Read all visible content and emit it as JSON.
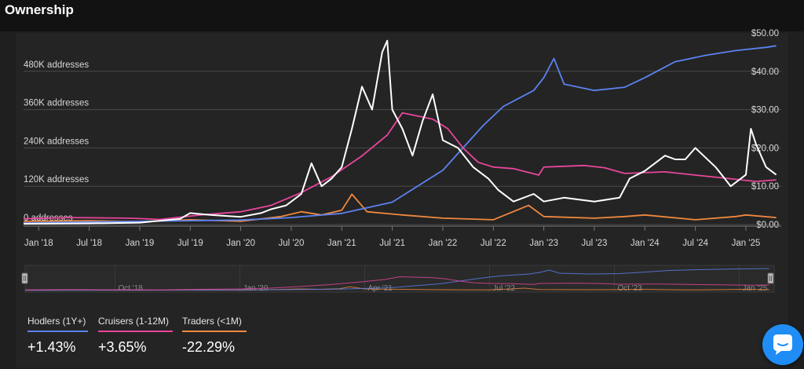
{
  "page": {
    "title": "Ownership"
  },
  "colors": {
    "hodlers": "#5b82f0",
    "cruisers": "#e8469c",
    "traders": "#f0883e",
    "price": "#ffffff"
  },
  "legend": [
    {
      "name": "Hodlers (1Y+)",
      "value": "+1.43%",
      "color": "#5b82f0"
    },
    {
      "name": "Cruisers (1-12M)",
      "value": "+3.65%",
      "color": "#e8469c"
    },
    {
      "name": "Traders (<1M)",
      "value": "-22.29%",
      "color": "#f0883e"
    }
  ],
  "chart_data": {
    "type": "line",
    "x_range": [
      "2017-11",
      "2025-04"
    ],
    "y_left": {
      "ticks": [
        "0 addresses",
        "120K addresses",
        "240K addresses",
        "360K addresses",
        "480K addresses"
      ],
      "range": [
        0,
        600000
      ]
    },
    "y_right": {
      "ticks": [
        "$0.00",
        "$10.00",
        "$20.00",
        "$30.00",
        "$40.00",
        "$50.00"
      ],
      "range": [
        0,
        50
      ]
    },
    "x_ticks": [
      "Jan '18",
      "Jul '18",
      "Jan '19",
      "Jul '19",
      "Jan '20",
      "Jul '20",
      "Jan '21",
      "Jul '21",
      "Jan '22",
      "Jul '22",
      "Jan '23",
      "Jul '23",
      "Jan '24",
      "Jul '24",
      "Jan '25"
    ],
    "navigator_ticks": [
      "Oct '18",
      "Jan '20",
      "Apr '21",
      "Jul '22",
      "Oct '23",
      "Jan '25"
    ],
    "series": [
      {
        "name": "Hodlers (1Y+)",
        "axis": "left",
        "color": "#5b82f0",
        "points": [
          [
            2017.85,
            5000
          ],
          [
            2018.5,
            8000
          ],
          [
            2019.0,
            10000
          ],
          [
            2019.5,
            12000
          ],
          [
            2020.0,
            14000
          ],
          [
            2020.5,
            22000
          ],
          [
            2021.0,
            35000
          ],
          [
            2021.5,
            70000
          ],
          [
            2021.8,
            130000
          ],
          [
            2022.0,
            170000
          ],
          [
            2022.2,
            240000
          ],
          [
            2022.4,
            310000
          ],
          [
            2022.6,
            370000
          ],
          [
            2022.9,
            420000
          ],
          [
            2023.0,
            460000
          ],
          [
            2023.1,
            520000
          ],
          [
            2023.2,
            440000
          ],
          [
            2023.5,
            420000
          ],
          [
            2023.8,
            430000
          ],
          [
            2024.0,
            460000
          ],
          [
            2024.3,
            510000
          ],
          [
            2024.6,
            530000
          ],
          [
            2024.9,
            545000
          ],
          [
            2025.2,
            555000
          ],
          [
            2025.3,
            560000
          ]
        ]
      },
      {
        "name": "Cruisers (1-12M)",
        "axis": "left",
        "color": "#e8469c",
        "points": [
          [
            2017.85,
            18000
          ],
          [
            2018.3,
            22000
          ],
          [
            2018.9,
            20000
          ],
          [
            2019.2,
            16000
          ],
          [
            2019.6,
            30000
          ],
          [
            2020.0,
            40000
          ],
          [
            2020.3,
            60000
          ],
          [
            2020.6,
            100000
          ],
          [
            2020.9,
            150000
          ],
          [
            2021.2,
            215000
          ],
          [
            2021.45,
            280000
          ],
          [
            2021.6,
            350000
          ],
          [
            2021.75,
            340000
          ],
          [
            2021.9,
            330000
          ],
          [
            2022.05,
            300000
          ],
          [
            2022.2,
            240000
          ],
          [
            2022.35,
            195000
          ],
          [
            2022.5,
            180000
          ],
          [
            2022.7,
            175000
          ],
          [
            2022.95,
            155000
          ],
          [
            2023.0,
            180000
          ],
          [
            2023.4,
            185000
          ],
          [
            2023.6,
            178000
          ],
          [
            2023.8,
            160000
          ],
          [
            2024.2,
            165000
          ],
          [
            2024.5,
            155000
          ],
          [
            2024.8,
            145000
          ],
          [
            2025.1,
            135000
          ],
          [
            2025.3,
            140000
          ]
        ]
      },
      {
        "name": "Traders (<1M)",
        "axis": "left",
        "color": "#f0883e",
        "points": [
          [
            2017.85,
            10000
          ],
          [
            2018.5,
            12000
          ],
          [
            2019.0,
            9000
          ],
          [
            2019.5,
            15000
          ],
          [
            2020.0,
            10000
          ],
          [
            2020.4,
            25000
          ],
          [
            2020.6,
            40000
          ],
          [
            2020.8,
            30000
          ],
          [
            2021.0,
            45000
          ],
          [
            2021.1,
            95000
          ],
          [
            2021.25,
            40000
          ],
          [
            2021.6,
            30000
          ],
          [
            2022.0,
            20000
          ],
          [
            2022.5,
            15000
          ],
          [
            2022.85,
            60000
          ],
          [
            2023.0,
            25000
          ],
          [
            2023.5,
            20000
          ],
          [
            2023.8,
            25000
          ],
          [
            2024.0,
            30000
          ],
          [
            2024.5,
            15000
          ],
          [
            2024.9,
            25000
          ],
          [
            2025.0,
            30000
          ],
          [
            2025.3,
            22000
          ]
        ]
      },
      {
        "name": "Price",
        "axis": "right",
        "color": "#ffffff",
        "points": [
          [
            2017.85,
            0.2
          ],
          [
            2018.5,
            0.3
          ],
          [
            2019.0,
            0.5
          ],
          [
            2019.4,
            1.5
          ],
          [
            2019.5,
            3
          ],
          [
            2019.7,
            2.5
          ],
          [
            2020.0,
            2
          ],
          [
            2020.2,
            3
          ],
          [
            2020.3,
            4
          ],
          [
            2020.45,
            5
          ],
          [
            2020.6,
            8
          ],
          [
            2020.7,
            16
          ],
          [
            2020.8,
            10
          ],
          [
            2020.9,
            12
          ],
          [
            2021.0,
            15
          ],
          [
            2021.1,
            25
          ],
          [
            2021.2,
            36
          ],
          [
            2021.3,
            30
          ],
          [
            2021.4,
            45
          ],
          [
            2021.45,
            48
          ],
          [
            2021.5,
            30
          ],
          [
            2021.6,
            25
          ],
          [
            2021.7,
            18
          ],
          [
            2021.8,
            27
          ],
          [
            2021.9,
            34
          ],
          [
            2022.0,
            22
          ],
          [
            2022.15,
            20
          ],
          [
            2022.3,
            15
          ],
          [
            2022.45,
            12
          ],
          [
            2022.55,
            9
          ],
          [
            2022.7,
            6
          ],
          [
            2022.9,
            8
          ],
          [
            2023.0,
            6
          ],
          [
            2023.2,
            7
          ],
          [
            2023.5,
            6
          ],
          [
            2023.75,
            7
          ],
          [
            2023.85,
            12
          ],
          [
            2024.0,
            14
          ],
          [
            2024.2,
            18
          ],
          [
            2024.3,
            17
          ],
          [
            2024.4,
            17
          ],
          [
            2024.5,
            20
          ],
          [
            2024.7,
            15
          ],
          [
            2024.85,
            10
          ],
          [
            2025.0,
            13
          ],
          [
            2025.05,
            25
          ],
          [
            2025.1,
            21
          ],
          [
            2025.2,
            15
          ],
          [
            2025.3,
            13
          ]
        ]
      }
    ]
  }
}
